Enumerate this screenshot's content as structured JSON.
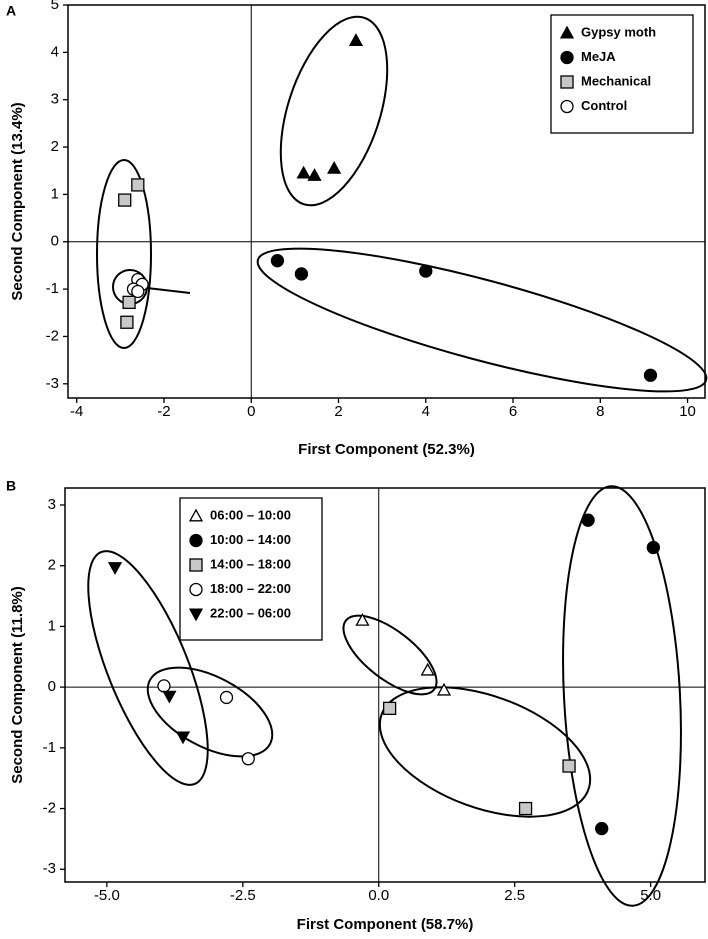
{
  "chart_data": [
    {
      "type": "scatter",
      "panel_label": "A",
      "x_label": "First Component (52.3%)",
      "y_label": "Second Component (13.4%)",
      "xlim": [
        -4.2,
        10.4
      ],
      "ylim": [
        -3.3,
        5
      ],
      "xticks": [
        -4,
        -2,
        0,
        2,
        4,
        6,
        8,
        10
      ],
      "yticks": [
        -3,
        -2,
        -1,
        0,
        1,
        2,
        3,
        4,
        5
      ],
      "zero_lines": true,
      "legend": "upper right",
      "series": [
        {
          "name": "Gypsy moth",
          "color": "#000000",
          "marker": "triangle",
          "x": [
            2.4,
            1.2,
            1.45,
            1.9
          ],
          "y": [
            4.25,
            1.45,
            1.4,
            1.55
          ]
        },
        {
          "name": "MeJA",
          "color": "#000000",
          "marker": "circle",
          "x": [
            0.6,
            1.15,
            4.0,
            9.15
          ],
          "y": [
            -0.4,
            -0.68,
            -0.62,
            -2.82
          ]
        },
        {
          "name": "Mechanical",
          "color": "#c8c8c8",
          "marker": "square",
          "x": [
            -2.6,
            -2.9,
            -2.8,
            -2.85
          ],
          "y": [
            1.2,
            0.88,
            -1.28,
            -1.7
          ]
        },
        {
          "name": "Control",
          "color": "#ffffff",
          "marker": "circle",
          "x": [
            -2.6,
            -2.5,
            -2.7,
            -2.6
          ],
          "y": [
            -0.8,
            -0.9,
            -1.0,
            -1.05
          ]
        }
      ]
    },
    {
      "type": "scatter",
      "panel_label": "B",
      "x_label": "First Component (58.7%)",
      "y_label": "Second Component (11.8%)",
      "xlim": [
        -5.77,
        6.0
      ],
      "ylim": [
        -3.21,
        3.28
      ],
      "xticks": [
        {
          "value": -5,
          "label": "-5.0"
        },
        {
          "value": -2.5,
          "label": "-2.5"
        },
        {
          "value": 0,
          "label": "0.0"
        },
        {
          "value": 2.5,
          "label": "2.5"
        },
        {
          "value": 5,
          "label": "5.0"
        }
      ],
      "yticks": [
        -3,
        -2,
        -1,
        0,
        1,
        2,
        3
      ],
      "zero_lines": true,
      "legend": "upper left",
      "series": [
        {
          "name": "06:00 – 10:00",
          "color": "#ffffff",
          "marker": "triangle",
          "x": [
            -0.3,
            0.9,
            1.2
          ],
          "y": [
            1.1,
            0.28,
            -0.05
          ]
        },
        {
          "name": "10:00 – 14:00",
          "color": "#000000",
          "marker": "circle",
          "x": [
            3.85,
            5.05,
            4.1
          ],
          "y": [
            2.75,
            2.3,
            -2.33
          ]
        },
        {
          "name": "14:00 – 18:00",
          "color": "#c8c8c8",
          "marker": "square",
          "x": [
            0.2,
            2.7,
            3.5
          ],
          "y": [
            -0.35,
            -2.0,
            -1.3
          ]
        },
        {
          "name": "18:00 – 22:00",
          "color": "#ffffff",
          "marker": "circle",
          "x": [
            -3.95,
            -2.8,
            -2.4
          ],
          "y": [
            0.02,
            -0.17,
            -1.18
          ]
        },
        {
          "name": "22:00 – 06:00",
          "color": "#000000",
          "marker": "triangle-down",
          "x": [
            -4.85,
            -3.85,
            -3.6
          ],
          "y": [
            1.97,
            -0.15,
            -0.82
          ]
        }
      ]
    }
  ]
}
